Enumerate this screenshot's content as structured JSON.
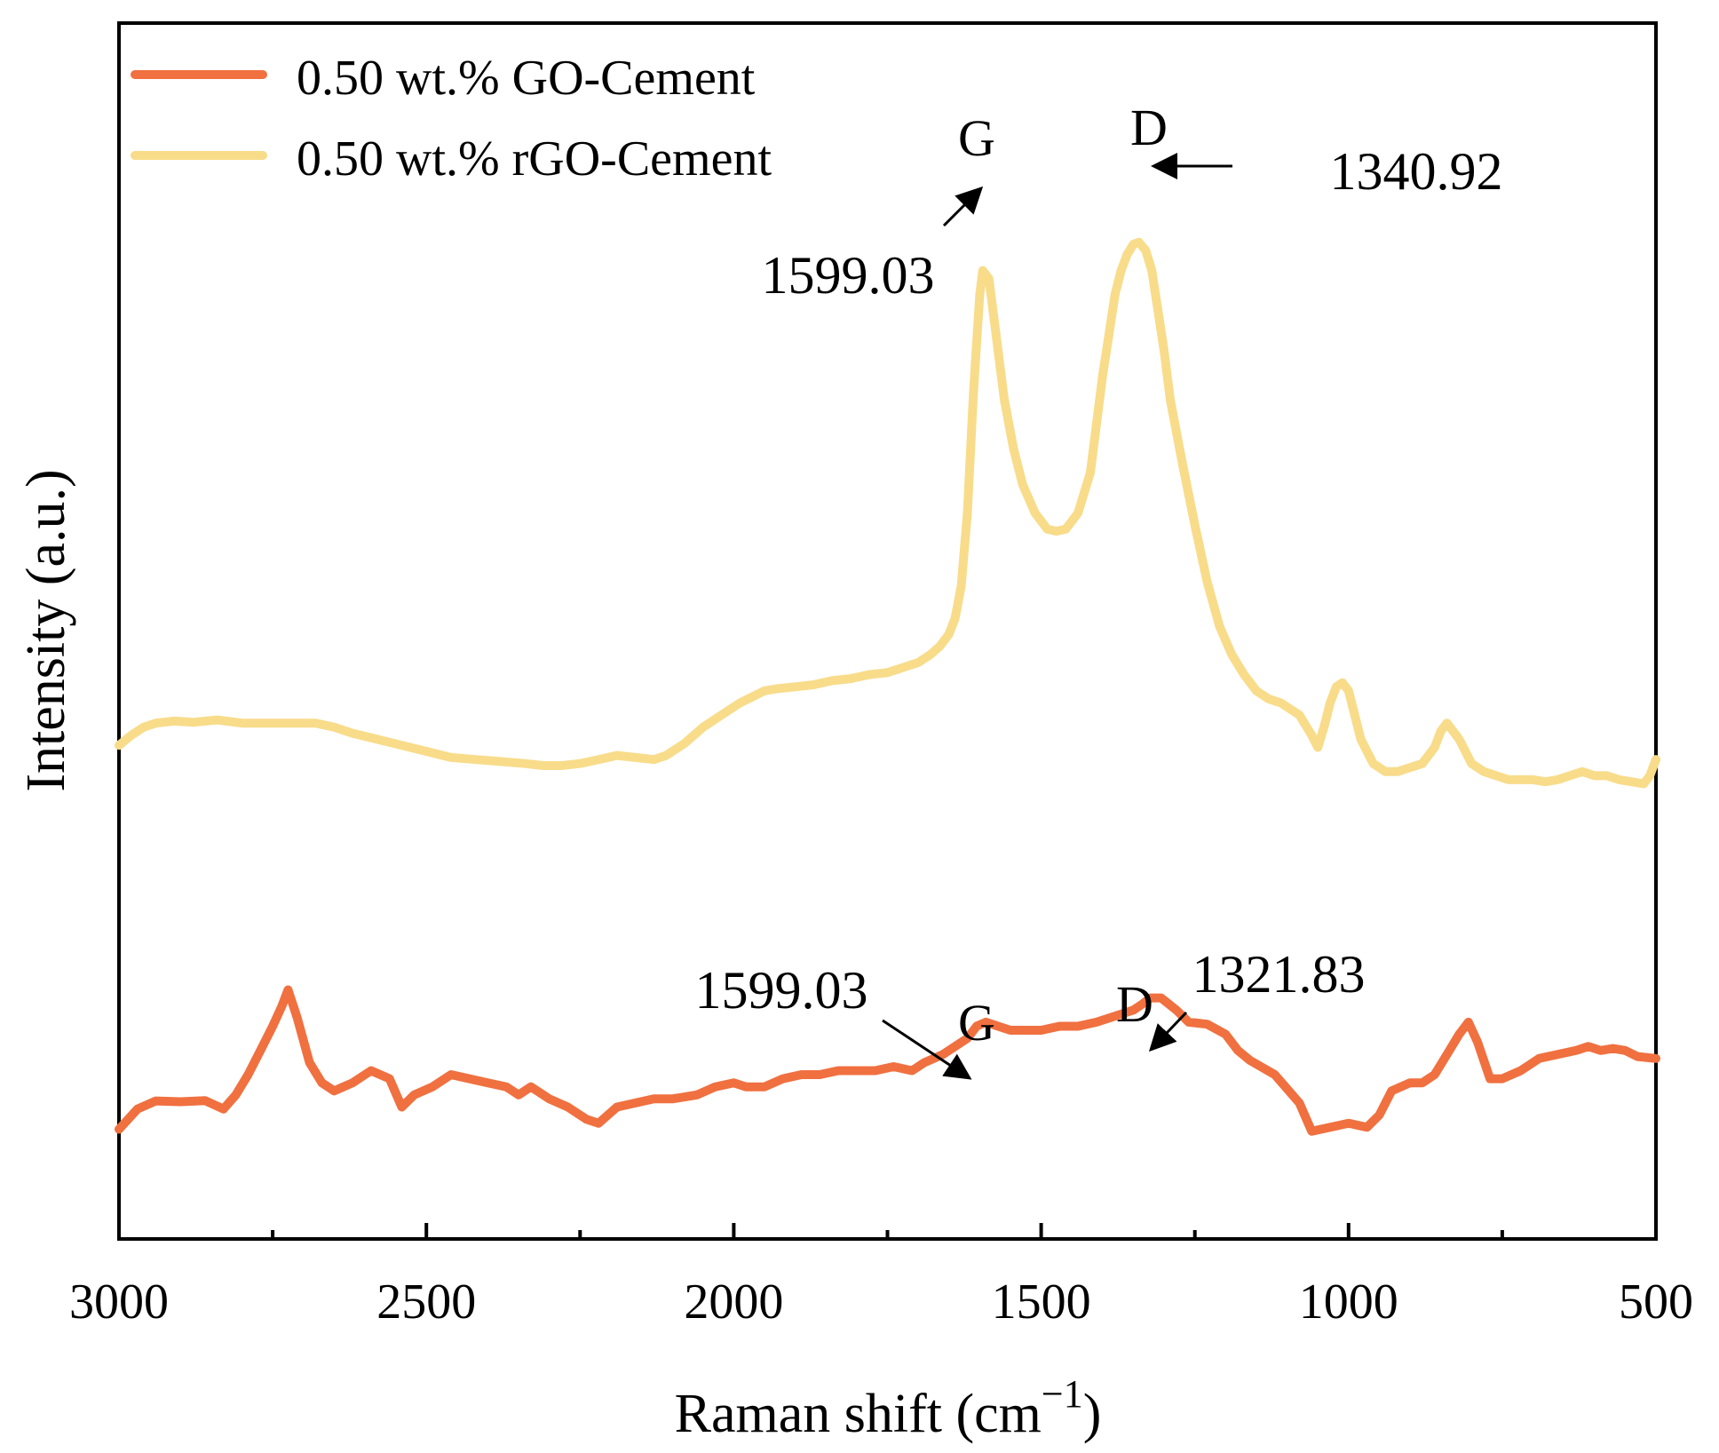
{
  "chart_data": {
    "type": "line",
    "xlabel": "Raman shift (cm",
    "xlabel_sup": "−1",
    "xlabel_close": ")",
    "ylabel": "Intensity (a.u.)",
    "xlim": [
      3000,
      500
    ],
    "ylim": [
      0,
      100
    ],
    "x_ticks": [
      3000,
      2500,
      2000,
      1500,
      1000,
      500
    ],
    "x_tick_labels": [
      "3000",
      "2500",
      "2000",
      "1500",
      "1000",
      "500"
    ],
    "x_minor_ticks": [
      2750,
      2250,
      1750,
      1250,
      750
    ],
    "legend": {
      "position": "top-left"
    },
    "series": [
      {
        "name": "0.50 wt.% GO-Cement",
        "color": "#F07040",
        "x": [
          3000,
          2970,
          2940,
          2900,
          2860,
          2830,
          2810,
          2790,
          2770,
          2750,
          2735,
          2725,
          2710,
          2690,
          2670,
          2650,
          2620,
          2590,
          2560,
          2540,
          2520,
          2490,
          2460,
          2430,
          2400,
          2370,
          2350,
          2330,
          2300,
          2270,
          2240,
          2220,
          2190,
          2160,
          2130,
          2100,
          2060,
          2030,
          2000,
          1980,
          1950,
          1920,
          1890,
          1860,
          1830,
          1800,
          1770,
          1740,
          1710,
          1690,
          1660,
          1640,
          1620,
          1605,
          1590,
          1570,
          1550,
          1520,
          1500,
          1470,
          1440,
          1410,
          1380,
          1350,
          1335,
          1322,
          1305,
          1280,
          1260,
          1230,
          1200,
          1180,
          1160,
          1120,
          1080,
          1060,
          1030,
          1000,
          970,
          950,
          930,
          900,
          880,
          860,
          840,
          820,
          805,
          790,
          770,
          750,
          720,
          690,
          660,
          630,
          610,
          590,
          570,
          550,
          530,
          500
        ],
        "values": [
          15.5,
          20.5,
          22.5,
          22.3,
          22.6,
          20.5,
          24,
          29,
          35,
          41,
          46,
          50,
          43,
          32,
          27,
          25,
          27,
          30,
          28,
          21,
          24,
          26,
          29,
          28,
          27,
          26,
          24,
          26,
          23,
          21,
          18,
          17,
          21,
          22,
          23,
          23,
          24,
          26,
          27,
          26,
          26,
          28,
          29,
          29,
          30,
          30,
          30,
          31,
          30,
          32,
          34,
          36,
          38,
          41,
          42,
          41,
          40,
          40,
          40,
          41,
          41,
          42,
          43.5,
          45,
          46.5,
          48,
          48,
          45,
          42,
          41.5,
          39,
          35,
          32.5,
          29,
          22,
          15,
          16,
          17,
          16,
          19,
          25,
          27,
          27,
          29,
          34,
          39,
          42,
          37,
          28,
          28,
          30,
          33,
          34,
          35,
          36,
          35,
          35.5,
          35,
          33.5,
          33
        ]
      },
      {
        "name": "0.50 wt.% rGO-Cement",
        "color": "#F8DC8A",
        "x": [
          3000,
          2980,
          2960,
          2940,
          2910,
          2880,
          2840,
          2800,
          2760,
          2720,
          2680,
          2650,
          2620,
          2580,
          2540,
          2500,
          2460,
          2420,
          2380,
          2340,
          2310,
          2280,
          2250,
          2220,
          2190,
          2160,
          2130,
          2110,
          2080,
          2050,
          2020,
          1990,
          1970,
          1950,
          1930,
          1900,
          1870,
          1840,
          1810,
          1780,
          1750,
          1720,
          1700,
          1680,
          1665,
          1650,
          1640,
          1630,
          1620,
          1610,
          1600,
          1595,
          1585,
          1575,
          1560,
          1545,
          1530,
          1510,
          1490,
          1475,
          1460,
          1440,
          1420,
          1410,
          1400,
          1390,
          1380,
          1370,
          1360,
          1350,
          1341,
          1330,
          1320,
          1310,
          1300,
          1290,
          1270,
          1250,
          1230,
          1210,
          1190,
          1170,
          1150,
          1130,
          1110,
          1080,
          1060,
          1050,
          1040,
          1030,
          1020,
          1010,
          1000,
          990,
          980,
          960,
          940,
          920,
          900,
          880,
          860,
          850,
          840,
          820,
          800,
          780,
          760,
          740,
          720,
          700,
          680,
          660,
          640,
          620,
          600,
          580,
          560,
          540,
          520,
          510,
          500
        ],
        "values": [
          110.5,
          113,
          115,
          116,
          116.5,
          116.2,
          116.8,
          116,
          116,
          116,
          116,
          115,
          113.5,
          112,
          110.5,
          109,
          107.5,
          107,
          106.5,
          106,
          105.5,
          105.5,
          106,
          107,
          108,
          107.5,
          107,
          108,
          111,
          115,
          118,
          121,
          122.5,
          124,
          124.5,
          125,
          125.5,
          126.5,
          127,
          128,
          128.5,
          130,
          131,
          133,
          135,
          138,
          142,
          150,
          168,
          198,
          222,
          228,
          226,
          214,
          196,
          184,
          175,
          168,
          164,
          163.5,
          164,
          168,
          178,
          190,
          202,
          212,
          222,
          228,
          232,
          234.5,
          235,
          233,
          228,
          218,
          208,
          196,
          180,
          165,
          151,
          140,
          133,
          128,
          124,
          122,
          121,
          118,
          113,
          110,
          115,
          121,
          125,
          126,
          124,
          118,
          112,
          106,
          104,
          104,
          105,
          106,
          110,
          114,
          116,
          112,
          106,
          104,
          103,
          102,
          102,
          102,
          101.5,
          102,
          103,
          104,
          103,
          103,
          102,
          101.5,
          101,
          103,
          107
        ]
      }
    ],
    "annotations": [
      {
        "text": "G",
        "x": 1600,
        "series": "0.50 wt.% rGO-Cement",
        "kind": "peak"
      },
      {
        "text": "D",
        "x": 1341,
        "series": "0.50 wt.% rGO-Cement",
        "kind": "peak"
      },
      {
        "text": "1599.03",
        "x": 1599.03,
        "series": "0.50 wt.% rGO-Cement",
        "kind": "arrow-label"
      },
      {
        "text": "1340.92",
        "x": 1340.92,
        "series": "0.50 wt.% rGO-Cement",
        "kind": "arrow-label"
      },
      {
        "text": "G",
        "x": 1590,
        "series": "0.50 wt.% GO-Cement",
        "kind": "peak"
      },
      {
        "text": "D",
        "x": 1322,
        "series": "0.50 wt.% GO-Cement",
        "kind": "peak"
      },
      {
        "text": "1599.03",
        "x": 1599.03,
        "series": "0.50 wt.% GO-Cement",
        "kind": "arrow-label"
      },
      {
        "text": "1321.83",
        "x": 1321.83,
        "series": "0.50 wt.% GO-Cement",
        "kind": "arrow-label"
      }
    ]
  }
}
